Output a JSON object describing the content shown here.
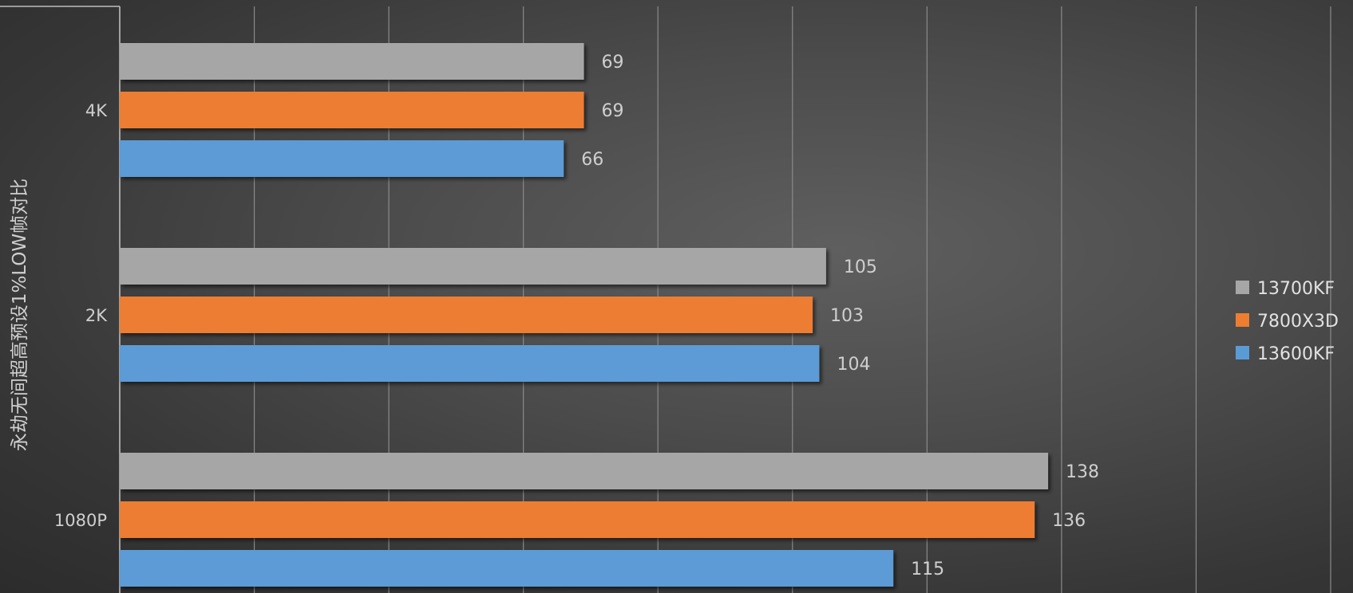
{
  "chart_data": {
    "type": "bar",
    "orientation": "horizontal",
    "categories": [
      "4K",
      "2K",
      "1080P"
    ],
    "series": [
      {
        "name": "13700KF",
        "color": "#a6a6a6",
        "values": [
          69,
          105,
          138
        ]
      },
      {
        "name": "7800X3D",
        "color": "#ed7d31",
        "values": [
          69,
          103,
          136
        ]
      },
      {
        "name": "13600KF",
        "color": "#5b9bd5",
        "values": [
          66,
          104,
          115
        ]
      }
    ],
    "ylabel": "永劫无间超高预设1%LOW帧对比",
    "xlim": [
      0,
      180
    ],
    "x_gridline_step": 20,
    "x_tick_labels_visible": false,
    "grid": true,
    "legend_position": "right",
    "data_labels": true
  }
}
